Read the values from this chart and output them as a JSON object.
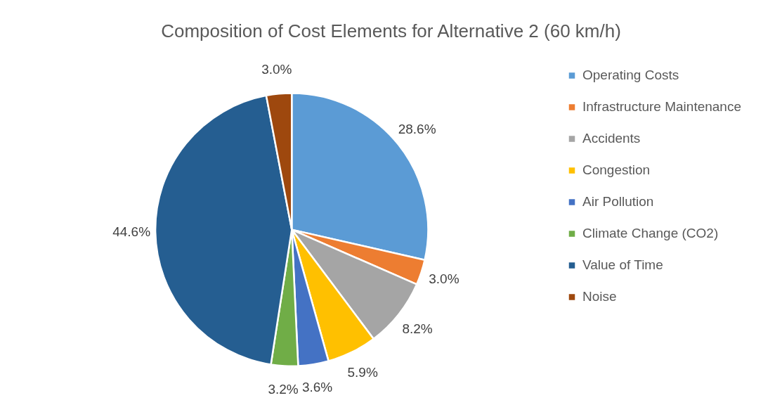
{
  "chart_data": {
    "type": "pie",
    "title": "Composition of Cost Elements for Alternative 2 (60 km/h)",
    "categories": [
      "Operating Costs",
      "Infrastructure Maintenance",
      "Accidents",
      "Congestion",
      "Air Pollution",
      "Climate Change (CO2)",
      "Value of Time",
      "Noise"
    ],
    "values": [
      28.6,
      3.0,
      8.2,
      5.9,
      3.6,
      3.2,
      44.6,
      3.0
    ],
    "value_labels": [
      "28.6%",
      "3.0%",
      "8.2%",
      "5.9%",
      "3.6%",
      "3.2%",
      "44.6%",
      "3.0%"
    ],
    "colors": [
      "#5b9bd5",
      "#ed7d31",
      "#a5a5a5",
      "#ffc000",
      "#4472c4",
      "#70ad47",
      "#255e91",
      "#9e480e"
    ],
    "legend": "right"
  }
}
